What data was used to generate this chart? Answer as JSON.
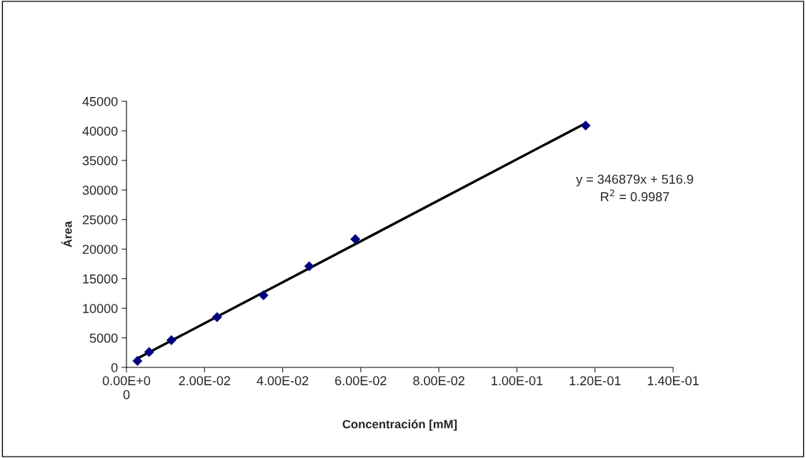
{
  "chart_data": {
    "type": "scatter",
    "xlabel": "Concentración [mM]",
    "ylabel": "Área",
    "series": [
      {
        "color": "#000080",
        "marker": "diamond",
        "x": [
          0.0028,
          0.0058,
          0.0115,
          0.0232,
          0.0351,
          0.0468,
          0.0586,
          0.1176
        ],
        "values": [
          1100,
          2600,
          4600,
          8500,
          12200,
          17100,
          21700,
          40900
        ]
      },
      {
        "type": "line",
        "color": "#000000",
        "marker": "none",
        "line_style": "solid",
        "x": [
          0.0028,
          0.1176
        ],
        "values": [
          1500,
          41300
        ]
      }
    ],
    "xlim": [
      0,
      0.14
    ],
    "ylim": [
      0,
      45000
    ],
    "xticks": [
      {
        "value": 0,
        "label": "0.00E+0\n0"
      },
      {
        "value": 0.02,
        "label": "2.00E-02"
      },
      {
        "value": 0.04,
        "label": "4.00E-02"
      },
      {
        "value": 0.06,
        "label": "6.00E-02"
      },
      {
        "value": 0.08,
        "label": "8.00E-02"
      },
      {
        "value": 0.1,
        "label": "1.00E-01"
      },
      {
        "value": 0.12,
        "label": "1.20E-01"
      },
      {
        "value": 0.14,
        "label": "1.40E-01"
      }
    ],
    "yticks": [
      0,
      5000,
      10000,
      15000,
      20000,
      25000,
      30000,
      35000,
      40000,
      45000
    ],
    "grid": false,
    "legend": false,
    "annotations": [
      "y = 346879x + 516.9\nR$^{2}$ = 0.9987"
    ]
  }
}
